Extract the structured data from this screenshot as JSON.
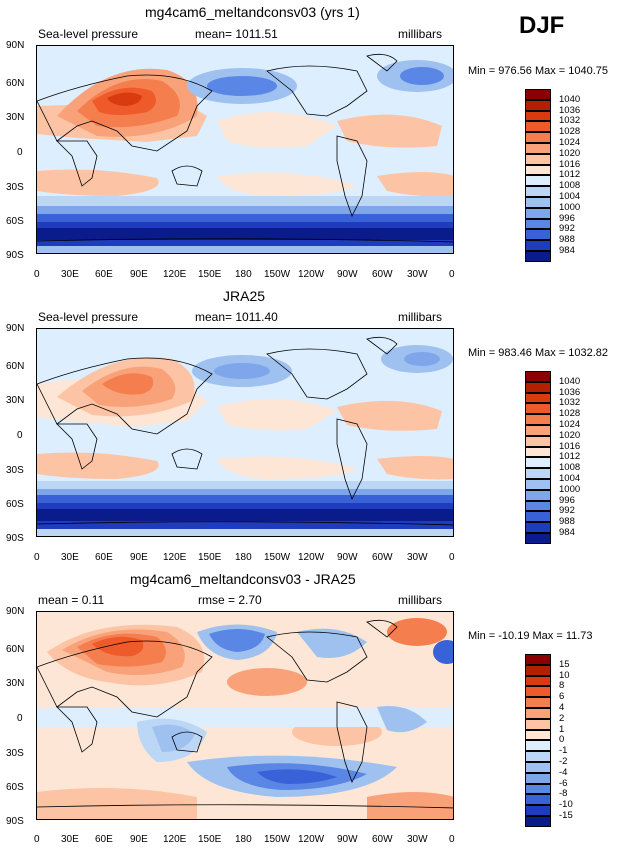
{
  "season_label": "DJF",
  "palettes": {
    "abs": [
      "#8b0000",
      "#b22000",
      "#d93a10",
      "#ef5a2a",
      "#f57e4e",
      "#f9a27a",
      "#fcc4a4",
      "#fde6d6",
      "#ddeeff",
      "#bcd6f6",
      "#9fc1ef",
      "#7fa6ea",
      "#5a86e6",
      "#3a62d8",
      "#1f3cbf",
      "#0a1c8c"
    ],
    "diff": [
      "#8b0000",
      "#b22000",
      "#d93a10",
      "#ef5a2a",
      "#f57e4e",
      "#f9a27a",
      "#fcc4a4",
      "#fde6d6",
      "#ddeeff",
      "#bcd6f6",
      "#9fc1ef",
      "#7fa6ea",
      "#5a86e6",
      "#3a62d8",
      "#1f3cbf",
      "#0a1c8c"
    ]
  },
  "lat_labels": [
    "90N",
    "60N",
    "30N",
    "0",
    "30S",
    "60S",
    "90S"
  ],
  "lon_labels": [
    "0",
    "30E",
    "60E",
    "90E",
    "120E",
    "150E",
    "180",
    "150W",
    "120W",
    "90W",
    "60W",
    "30W",
    "0"
  ],
  "panels": [
    {
      "id": "model",
      "title": "mg4cam6_meltandconsv03 (yrs 1)",
      "left_label": "Sea-level pressure",
      "center_label": "mean=  1011.51",
      "right_label": "millibars",
      "minmax": "Min = 976.56  Max = 1040.75",
      "colorbar_labels": [
        "1040",
        "1036",
        "1032",
        "1028",
        "1024",
        "1020",
        "1016",
        "1012",
        "1008",
        "1004",
        "1000",
        "996",
        "992",
        "988",
        "984"
      ]
    },
    {
      "id": "obs",
      "title": "JRA25",
      "left_label": "Sea-level pressure",
      "center_label": "mean=  1011.40",
      "right_label": "millibars",
      "minmax": "Min = 983.46  Max = 1032.82",
      "colorbar_labels": [
        "1040",
        "1036",
        "1032",
        "1028",
        "1024",
        "1020",
        "1016",
        "1012",
        "1008",
        "1004",
        "1000",
        "996",
        "992",
        "988",
        "984"
      ]
    },
    {
      "id": "diff",
      "title": "mg4cam6_meltandconsv03 - JRA25",
      "left_label": "mean =    0.11",
      "center_label": "rmse =     2.70",
      "right_label": "millibars",
      "minmax": "Min = -10.19  Max =  11.73",
      "colorbar_labels": [
        "15",
        "10",
        "8",
        "6",
        "4",
        "2",
        "1",
        "0",
        "-1",
        "-2",
        "-4",
        "-6",
        "-8",
        "-10",
        "-15"
      ]
    }
  ]
}
